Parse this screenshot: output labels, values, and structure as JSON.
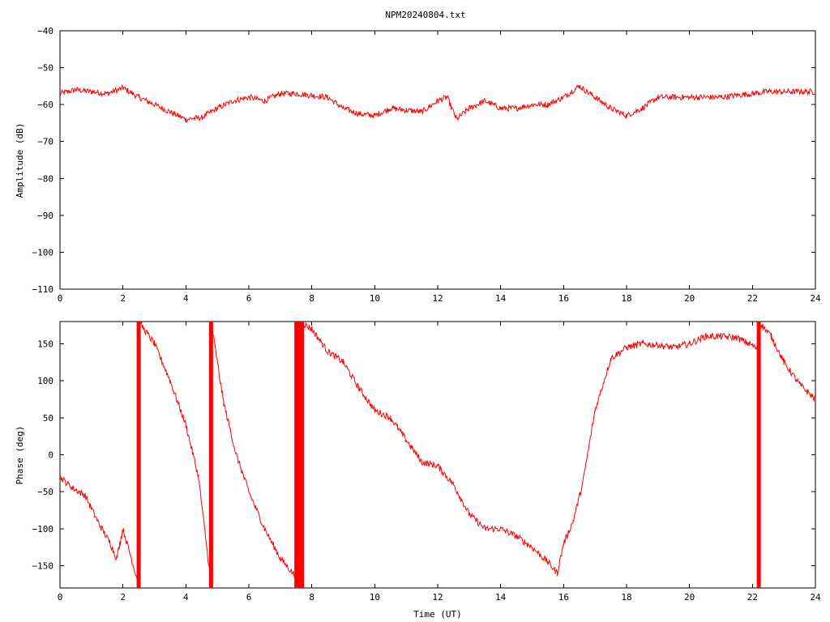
{
  "title": "NPM20240804.txt",
  "colors": {
    "series": "#ff0000",
    "axis": "#000000",
    "background": "#ffffff"
  },
  "chart_data": [
    {
      "type": "line",
      "title": "NPM20240804.txt",
      "xlabel": "",
      "ylabel": "Amplitude (dB)",
      "xlim": [
        0,
        24
      ],
      "ylim": [
        -110,
        -40
      ],
      "xticks": [
        0,
        2,
        4,
        6,
        8,
        10,
        12,
        14,
        16,
        18,
        20,
        22,
        24
      ],
      "yticks": [
        -110,
        -100,
        -90,
        -80,
        -70,
        -60,
        -50,
        -40
      ],
      "xtick_labels": [
        "0",
        "2",
        "4",
        "6",
        "8",
        "10",
        "12",
        "14",
        "16",
        "18",
        "20",
        "22",
        "24"
      ],
      "ytick_labels": [
        "−110",
        "−100",
        "−90",
        "−80",
        "−70",
        "−60",
        "−50",
        "−40"
      ],
      "grid": false,
      "series": [
        {
          "x": [
            0,
            0.5,
            1,
            1.5,
            2,
            2.5,
            3,
            3.5,
            4,
            4.5,
            5,
            5.5,
            6,
            6.5,
            7,
            7.5,
            8,
            8.5,
            9,
            9.5,
            10,
            10.5,
            11,
            11.5,
            12,
            12.3,
            12.6,
            13,
            13.5,
            14,
            14.5,
            15,
            15.5,
            16,
            16.5,
            17,
            17.5,
            18,
            18.5,
            19,
            19.5,
            20,
            20.5,
            21,
            21.5,
            22,
            22.5,
            23,
            23.5,
            24
          ],
          "y": [
            -57,
            -56,
            -56.5,
            -57,
            -55.5,
            -58,
            -60,
            -62,
            -64,
            -63.5,
            -61,
            -59,
            -58,
            -59,
            -57,
            -57,
            -57.5,
            -58,
            -61,
            -62.5,
            -63,
            -61,
            -61.5,
            -62,
            -59,
            -58,
            -64,
            -61,
            -59,
            -61,
            -61,
            -60,
            -60,
            -58,
            -55,
            -58,
            -61,
            -63,
            -61,
            -58,
            -58,
            -58,
            -58,
            -58,
            -57.5,
            -57,
            -56.5,
            -56.5,
            -56.5,
            -56.5
          ]
        }
      ]
    },
    {
      "type": "line",
      "title": "",
      "xlabel": "Time (UT)",
      "ylabel": "Phase (deg)",
      "xlim": [
        0,
        24
      ],
      "ylim": [
        -180,
        180
      ],
      "xticks": [
        0,
        2,
        4,
        6,
        8,
        10,
        12,
        14,
        16,
        18,
        20,
        22,
        24
      ],
      "yticks": [
        -150,
        -100,
        -50,
        0,
        50,
        100,
        150
      ],
      "xtick_labels": [
        "0",
        "2",
        "4",
        "6",
        "8",
        "10",
        "12",
        "14",
        "16",
        "18",
        "20",
        "22",
        "24"
      ],
      "ytick_labels": [
        "−150",
        "−100",
        "−50",
        "0",
        "50",
        "100",
        "150"
      ],
      "grid": false,
      "series": [
        {
          "x": [
            0,
            0.4,
            0.8,
            1.2,
            1.6,
            1.8,
            1.9,
            2.0,
            2.2,
            2.5,
            2.5,
            3.0,
            3.5,
            4.0,
            4.4,
            4.8,
            4.8,
            5.2,
            5.6,
            6.0,
            6.5,
            7.0,
            7.5,
            7.6,
            7.6,
            8.0,
            8.5,
            9.0,
            9.5,
            10.0,
            10.5,
            11.0,
            11.5,
            12.0,
            12.5,
            13.0,
            13.5,
            14.0,
            14.5,
            15.0,
            15.5,
            15.8,
            16.0,
            16.3,
            16.6,
            17.0,
            17.5,
            18.0,
            18.5,
            19.0,
            19.5,
            20.0,
            20.5,
            21.0,
            21.5,
            22.0,
            22.2,
            22.2,
            22.6,
            23.0,
            23.5,
            24.0
          ],
          "y": [
            -30,
            -45,
            -55,
            -90,
            -120,
            -140,
            -120,
            -100,
            -130,
            -175,
            180,
            150,
            100,
            40,
            -30,
            -175,
            180,
            70,
            0,
            -50,
            -100,
            -140,
            -165,
            -175,
            180,
            170,
            140,
            125,
            90,
            60,
            50,
            20,
            -10,
            -15,
            -40,
            -80,
            -100,
            -100,
            -110,
            -125,
            -145,
            -160,
            -120,
            -90,
            -40,
            60,
            130,
            145,
            150,
            148,
            145,
            150,
            160,
            160,
            158,
            148,
            140,
            180,
            160,
            125,
            95,
            75
          ],
          "wrap_x": [
            2.5,
            4.8,
            7.6,
            22.2
          ]
        }
      ]
    }
  ]
}
